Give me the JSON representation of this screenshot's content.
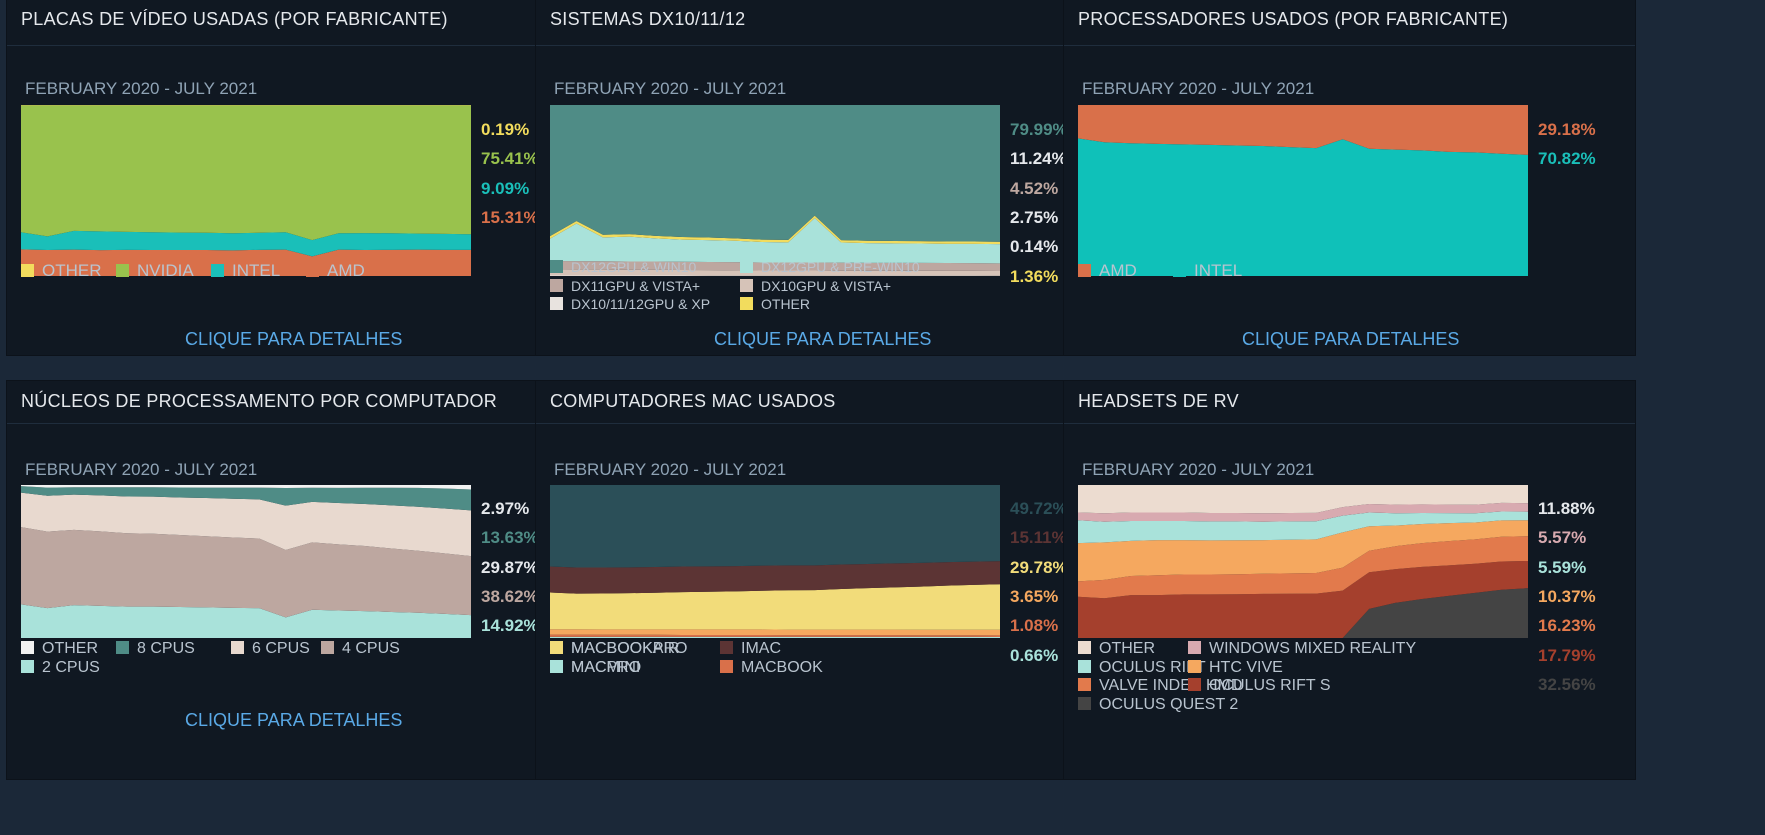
{
  "details_label": "CLIQUE PARA DETALHES",
  "chart_data": [
    {
      "type": "area",
      "stacked": true,
      "title": "PLACAS DE VÍDEO USADAS (POR FABRICANTE)",
      "subtitle": "FEBRUARY 2020 - JULY 2021",
      "x": [
        "2020-02",
        "2020-03",
        "2020-04",
        "2020-05",
        "2020-06",
        "2020-07",
        "2020-08",
        "2020-09",
        "2020-10",
        "2020-11",
        "2020-12",
        "2021-01",
        "2021-02",
        "2021-03",
        "2021-04",
        "2021-05",
        "2021-06",
        "2021-07"
      ],
      "ylim": [
        0,
        100
      ],
      "series": [
        {
          "name": "AMD",
          "color": "#d9704a",
          "values": [
            15.6,
            15.2,
            15.4,
            15.1,
            15.3,
            15.2,
            15.2,
            15.2,
            15.0,
            15.3,
            15.4,
            11.5,
            15.4,
            15.2,
            15.3,
            15.4,
            15.3,
            15.31
          ],
          "label": "15.31%"
        },
        {
          "name": "INTEL",
          "color": "#1abfb9",
          "values": [
            10.0,
            8.0,
            11.0,
            11.0,
            10.5,
            10.4,
            10.2,
            10.1,
            10.0,
            10.0,
            10.2,
            9.5,
            9.6,
            9.9,
            9.7,
            9.4,
            9.3,
            9.09
          ],
          "label": "9.09%"
        },
        {
          "name": "NVIDIA",
          "color": "#99c24d",
          "values": [
            74.2,
            76.6,
            73.4,
            73.7,
            74.0,
            74.2,
            74.4,
            74.5,
            74.8,
            74.5,
            74.2,
            78.8,
            74.8,
            74.7,
            74.8,
            75.0,
            75.2,
            75.41
          ],
          "label": "75.41%"
        },
        {
          "name": "OTHER",
          "color": "#f2dc5d",
          "values": [
            0.2,
            0.2,
            0.2,
            0.2,
            0.2,
            0.2,
            0.2,
            0.2,
            0.2,
            0.2,
            0.2,
            0.2,
            0.2,
            0.2,
            0.2,
            0.2,
            0.2,
            0.19
          ],
          "label": "0.19%"
        }
      ]
    },
    {
      "type": "area",
      "stacked": true,
      "title": "SISTEMAS DX10/11/12",
      "subtitle": "FEBRUARY 2020 - JULY 2021",
      "x": [
        "2020-02",
        "2020-03",
        "2020-04",
        "2020-05",
        "2020-06",
        "2020-07",
        "2020-08",
        "2020-09",
        "2020-10",
        "2020-11",
        "2020-12",
        "2021-01",
        "2021-02",
        "2021-03",
        "2021-04",
        "2021-05",
        "2021-06",
        "2021-07"
      ],
      "ylim": [
        0,
        100
      ],
      "series": [
        {
          "name": "DX10/11/12GPU & XP",
          "color": "#e8e3df",
          "values": [
            0.3,
            0.3,
            0.3,
            0.3,
            0.3,
            0.3,
            0.2,
            0.2,
            0.2,
            0.2,
            0.2,
            0.2,
            0.2,
            0.2,
            0.2,
            0.2,
            0.2,
            0.14
          ],
          "label": "0.14%"
        },
        {
          "name": "DX10GPU & VISTA+",
          "color": "#d6c3b8",
          "values": [
            3.5,
            3.4,
            3.4,
            3.3,
            3.3,
            3.2,
            3.2,
            3.1,
            3.0,
            3.0,
            3.0,
            2.9,
            2.9,
            2.9,
            2.9,
            2.8,
            2.8,
            2.75
          ],
          "label": "2.75%"
        },
        {
          "name": "DX11GPU & VISTA+",
          "color": "#bda7a0",
          "values": [
            5.0,
            5.0,
            4.9,
            4.9,
            4.9,
            4.8,
            4.8,
            4.8,
            4.7,
            4.7,
            4.7,
            4.7,
            4.6,
            4.6,
            4.6,
            4.6,
            4.5,
            4.52
          ],
          "label": "4.52%"
        },
        {
          "name": "DX12GPU & PRE-WIN10",
          "color": "#a9e2da",
          "values": [
            13.0,
            22.0,
            14.0,
            14.5,
            13.5,
            13.0,
            12.8,
            12.5,
            12.0,
            11.8,
            26.0,
            11.8,
            11.5,
            11.4,
            11.3,
            11.2,
            11.3,
            11.24
          ],
          "label": "11.24%"
        },
        {
          "name": "OTHER",
          "color": "#f2dc5d",
          "values": [
            1.5,
            1.5,
            1.5,
            1.5,
            1.5,
            1.5,
            1.5,
            1.4,
            1.4,
            1.4,
            1.4,
            1.4,
            1.4,
            1.4,
            1.4,
            1.4,
            1.4,
            1.36
          ],
          "label": "1.36%"
        },
        {
          "name": "DX12GPU & WIN10",
          "color": "#4f8c86",
          "values": [
            76.7,
            67.8,
            75.9,
            75.5,
            76.5,
            77.2,
            77.5,
            78.0,
            78.7,
            78.9,
            64.7,
            79.0,
            79.4,
            79.5,
            79.6,
            79.8,
            79.8,
            79.99
          ],
          "label": "79.99%"
        }
      ]
    },
    {
      "type": "area",
      "stacked": true,
      "title": "PROCESSADORES USADOS (POR FABRICANTE)",
      "subtitle": "FEBRUARY 2020 - JULY 2021",
      "x": [
        "2020-02",
        "2020-03",
        "2020-04",
        "2020-05",
        "2020-06",
        "2020-07",
        "2020-08",
        "2020-09",
        "2020-10",
        "2020-11",
        "2020-12",
        "2021-01",
        "2021-02",
        "2021-03",
        "2021-04",
        "2021-05",
        "2021-06",
        "2021-07"
      ],
      "ylim": [
        0,
        100
      ],
      "series": [
        {
          "name": "INTEL",
          "color": "#0fc1b9",
          "values": [
            80.5,
            78.2,
            77.6,
            77.3,
            77.0,
            76.7,
            76.3,
            76.0,
            75.4,
            74.8,
            80.0,
            74.4,
            73.9,
            73.5,
            72.6,
            72.3,
            71.5,
            70.82
          ],
          "label": "70.82%"
        },
        {
          "name": "AMD",
          "color": "#d9704a",
          "values": [
            19.5,
            21.8,
            22.4,
            22.7,
            23.0,
            23.3,
            23.7,
            24.0,
            24.6,
            25.2,
            20.0,
            25.6,
            26.1,
            26.5,
            27.4,
            27.7,
            28.5,
            29.18
          ],
          "label": "29.18%"
        }
      ]
    },
    {
      "type": "area",
      "stacked": true,
      "title": "NÚCLEOS DE PROCESSAMENTO POR COMPUTADOR",
      "subtitle": "FEBRUARY 2020 - JULY 2021",
      "x": [
        "2020-02",
        "2020-03",
        "2020-04",
        "2020-05",
        "2020-06",
        "2020-07",
        "2020-08",
        "2020-09",
        "2020-10",
        "2020-11",
        "2020-12",
        "2021-01",
        "2021-02",
        "2021-03",
        "2021-04",
        "2021-05",
        "2021-06",
        "2021-07"
      ],
      "ylim": [
        0,
        100
      ],
      "series": [
        {
          "name": "2 CPUS",
          "color": "#a9e2da",
          "values": [
            22.0,
            19.5,
            21.5,
            21.0,
            20.5,
            20.5,
            20.3,
            20.0,
            19.7,
            19.5,
            13.5,
            18.5,
            18.0,
            17.6,
            17.0,
            16.5,
            15.8,
            14.92
          ],
          "label": "14.92%"
        },
        {
          "name": "4 CPUS",
          "color": "#bda7a0",
          "values": [
            50.5,
            50.0,
            49.2,
            48.7,
            48.0,
            47.6,
            47.0,
            46.5,
            46.0,
            45.5,
            44.0,
            44.0,
            43.2,
            42.5,
            41.5,
            40.5,
            39.5,
            38.62
          ],
          "label": "38.62%"
        },
        {
          "name": "6 CPUS",
          "color": "#e8d9cf",
          "values": [
            22.5,
            23.5,
            23.0,
            23.5,
            24.0,
            24.3,
            24.5,
            25.0,
            25.3,
            25.6,
            29.0,
            26.5,
            27.0,
            27.5,
            28.2,
            28.8,
            29.3,
            29.87
          ],
          "label": "29.87%"
        },
        {
          "name": "8 CPUS",
          "color": "#4f8c86",
          "values": [
            4.3,
            5.3,
            4.8,
            5.3,
            6.0,
            6.1,
            6.6,
            6.8,
            7.3,
            7.7,
            11.5,
            9.2,
            9.9,
            10.6,
            11.5,
            12.3,
            13.1,
            13.63
          ],
          "label": "13.63%"
        },
        {
          "name": "OTHER",
          "color": "#f2f2f2",
          "values": [
            0.7,
            1.7,
            1.5,
            1.5,
            1.5,
            1.5,
            1.6,
            1.7,
            1.7,
            1.7,
            2.0,
            1.8,
            1.9,
            1.8,
            1.8,
            1.9,
            2.3,
            2.97
          ],
          "label": "2.97%"
        }
      ]
    },
    {
      "type": "area",
      "stacked": true,
      "title": "COMPUTADORES MAC USADOS",
      "subtitle": "FEBRUARY 2020 - JULY 2021",
      "x": [
        "2020-02",
        "2020-03",
        "2020-04",
        "2020-05",
        "2020-06",
        "2020-07",
        "2020-08",
        "2020-09",
        "2020-10",
        "2020-11",
        "2020-12",
        "2021-01",
        "2021-02",
        "2021-03",
        "2021-04",
        "2021-05",
        "2021-06",
        "2021-07"
      ],
      "ylim": [
        0,
        100
      ],
      "series": [
        {
          "name": "MACPRO",
          "color": "#a9e2da",
          "values": [
            0.7,
            0.7,
            0.7,
            0.7,
            0.7,
            0.7,
            0.7,
            0.7,
            0.7,
            0.7,
            0.7,
            0.7,
            0.7,
            0.7,
            0.7,
            0.7,
            0.7,
            0.66
          ],
          "label": "0.66%"
        },
        {
          "name": "MACBOOK",
          "color": "#d9704a",
          "values": [
            1.5,
            1.5,
            1.4,
            1.4,
            1.4,
            1.3,
            1.3,
            1.3,
            1.3,
            1.2,
            1.2,
            1.2,
            1.2,
            1.2,
            1.1,
            1.1,
            1.1,
            1.08
          ],
          "label": "1.08%"
        },
        {
          "name": "MACMINI",
          "color": "#f5a85f",
          "values": [
            3.5,
            3.5,
            3.5,
            3.5,
            3.5,
            3.6,
            3.6,
            3.6,
            3.6,
            3.6,
            3.6,
            3.6,
            3.6,
            3.6,
            3.6,
            3.6,
            3.6,
            3.65
          ],
          "label": "3.65%"
        },
        {
          "name": "MACBOOKAIR",
          "color": "#f2dc7a",
          "values": [
            24.0,
            23.3,
            23.5,
            23.7,
            24.0,
            24.4,
            24.6,
            24.9,
            25.3,
            25.7,
            25.8,
            26.5,
            27.1,
            27.6,
            28.2,
            28.8,
            29.3,
            29.78
          ],
          "label": "29.78%"
        },
        {
          "name": "IMAC",
          "color": "#5c3434",
          "values": [
            17.0,
            17.1,
            17.0,
            16.9,
            16.8,
            16.7,
            16.6,
            16.5,
            16.4,
            16.3,
            16.2,
            16.0,
            15.8,
            15.7,
            15.5,
            15.4,
            15.2,
            15.11
          ],
          "label": "15.11%"
        },
        {
          "name": "MACBOOKPRO",
          "color": "#2b4f58",
          "values": [
            53.3,
            53.9,
            53.9,
            53.8,
            53.6,
            53.3,
            53.2,
            53.0,
            52.7,
            52.5,
            52.5,
            52.0,
            51.6,
            51.2,
            50.9,
            50.4,
            50.1,
            49.72
          ],
          "label": "49.72%"
        }
      ]
    },
    {
      "type": "area",
      "stacked": true,
      "title": "HEADSETS DE RV",
      "subtitle": "FEBRUARY 2020 - JULY 2021",
      "x": [
        "2020-02",
        "2020-03",
        "2020-04",
        "2020-05",
        "2020-06",
        "2020-07",
        "2020-08",
        "2020-09",
        "2020-10",
        "2020-11",
        "2020-12",
        "2021-01",
        "2021-02",
        "2021-03",
        "2021-04",
        "2021-05",
        "2021-06",
        "2021-07"
      ],
      "ylim": [
        0,
        100
      ],
      "series": [
        {
          "name": "OCULUS QUEST 2",
          "color": "#444444",
          "values": [
            0,
            0,
            0,
            0,
            0,
            0,
            0,
            0,
            0,
            0,
            0,
            19.0,
            23.0,
            25.5,
            27.5,
            29.5,
            31.5,
            32.56
          ],
          "label": "32.56%"
        },
        {
          "name": "OCULUS RIFT S",
          "color": "#a5402d",
          "values": [
            27.0,
            26.0,
            28.0,
            28.0,
            28.5,
            28.5,
            28.6,
            28.8,
            28.9,
            29.0,
            31.0,
            24.0,
            22.0,
            21.0,
            20.0,
            19.0,
            18.5,
            17.79
          ],
          "label": "17.79%"
        },
        {
          "name": "VALVE INDEX HMD",
          "color": "#e27a4c",
          "values": [
            10.0,
            12.0,
            12.5,
            13.0,
            13.0,
            13.0,
            13.1,
            13.2,
            13.3,
            13.5,
            15.0,
            14.0,
            15.0,
            15.5,
            15.8,
            16.0,
            16.2,
            16.23
          ],
          "label": "16.23%"
        },
        {
          "name": "HTC VIVE",
          "color": "#f5a85f",
          "values": [
            25.0,
            24.5,
            23.0,
            23.0,
            22.5,
            22.3,
            22.2,
            22.0,
            22.0,
            22.0,
            23.0,
            16.0,
            13.5,
            12.5,
            11.8,
            11.0,
            10.7,
            10.37
          ],
          "label": "10.37%"
        },
        {
          "name": "OCULUS RIFT",
          "color": "#a9e2da",
          "values": [
            15.0,
            13.5,
            13.0,
            12.5,
            12.5,
            12.4,
            12.3,
            12.0,
            12.0,
            11.8,
            11.0,
            9.0,
            8.0,
            7.2,
            6.5,
            6.0,
            5.8,
            5.59
          ],
          "label": "5.59%"
        },
        {
          "name": "WINDOWS MIXED REALITY",
          "color": "#d8aab0",
          "values": [
            5.0,
            5.5,
            5.5,
            5.5,
            5.5,
            5.5,
            5.5,
            5.5,
            5.5,
            5.5,
            5.5,
            5.6,
            5.7,
            5.6,
            5.6,
            5.6,
            5.6,
            5.57
          ],
          "label": "5.57%"
        },
        {
          "name": "OTHER",
          "color": "#ecdcd0",
          "values": [
            18.0,
            18.5,
            18.0,
            18.0,
            18.0,
            18.3,
            18.3,
            18.5,
            18.3,
            18.2,
            14.5,
            12.4,
            12.8,
            12.7,
            12.8,
            12.9,
            11.7,
            11.88
          ],
          "label": "11.88%"
        }
      ]
    }
  ]
}
